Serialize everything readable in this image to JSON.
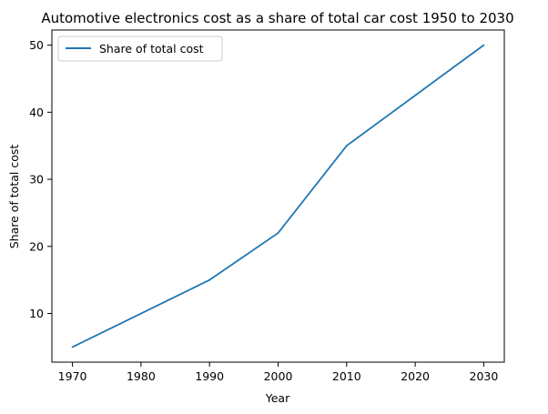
{
  "chart_data": {
    "type": "line",
    "title": "Automotive electronics cost as a share of total car cost 1950 to 2030",
    "xlabel": "Year",
    "ylabel": "Share of total cost",
    "x": [
      1970,
      1990,
      2000,
      2010,
      2030
    ],
    "series": [
      {
        "name": "Share of total cost",
        "values": [
          5,
          15,
          22,
          35,
          50
        ],
        "color": "#1f77b4"
      }
    ],
    "xticks": [
      "1970",
      "1980",
      "1990",
      "2000",
      "2010",
      "2020",
      "2030"
    ],
    "yticks": [
      "10",
      "20",
      "30",
      "40",
      "50"
    ],
    "xlim": [
      1967,
      2033
    ],
    "ylim": [
      2.75,
      52.25
    ],
    "grid": false,
    "legend_position": "top-left"
  }
}
